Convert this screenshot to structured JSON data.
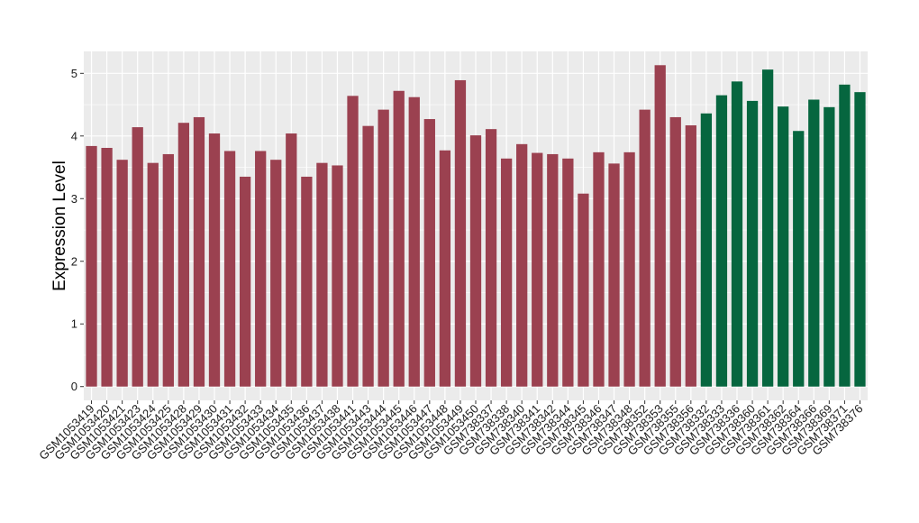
{
  "chart_data": {
    "type": "bar",
    "ylabel": "Expression Level",
    "xlabel": "",
    "ylim": [
      -0.22,
      5.35
    ],
    "yticks": [
      0,
      1,
      2,
      3,
      4,
      5
    ],
    "grid": true,
    "panel_background": "#ebebeb",
    "grid_color": "#ffffff",
    "group_colors": {
      "red": "#9b4150",
      "green": "#06663f"
    },
    "categories": [
      "GSM1053419",
      "GSM1053420",
      "GSM1053421",
      "GSM1053423",
      "GSM1053424",
      "GSM1053425",
      "GSM1053428",
      "GSM1053429",
      "GSM1053430",
      "GSM1053431",
      "GSM1053432",
      "GSM1053433",
      "GSM1053434",
      "GSM1053435",
      "GSM1053436",
      "GSM1053437",
      "GSM1053438",
      "GSM1053441",
      "GSM1053443",
      "GSM1053444",
      "GSM1053445",
      "GSM1053446",
      "GSM1053447",
      "GSM1053448",
      "GSM1053449",
      "GSM1053450",
      "GSM738337",
      "GSM738338",
      "GSM738340",
      "GSM738341",
      "GSM738342",
      "GSM738344",
      "GSM738345",
      "GSM738346",
      "GSM738347",
      "GSM738348",
      "GSM738352",
      "GSM738353",
      "GSM738355",
      "GSM738356",
      "GSM738332",
      "GSM738333",
      "GSM738336",
      "GSM738360",
      "GSM738361",
      "GSM738362",
      "GSM738364",
      "GSM738366",
      "GSM738369",
      "GSM738371",
      "GSM738376"
    ],
    "values": [
      3.84,
      3.81,
      3.62,
      4.14,
      3.57,
      3.71,
      4.21,
      4.3,
      4.04,
      3.76,
      3.35,
      3.76,
      3.62,
      4.04,
      3.35,
      3.57,
      3.53,
      4.64,
      4.16,
      4.42,
      4.72,
      4.62,
      4.27,
      3.77,
      4.89,
      4.01,
      4.11,
      3.64,
      3.87,
      3.73,
      3.71,
      3.64,
      3.08,
      3.74,
      3.56,
      3.74,
      4.42,
      5.13,
      4.3,
      4.17,
      4.36,
      4.65,
      4.87,
      4.56,
      5.06,
      4.47,
      4.08,
      4.58,
      4.46,
      4.82,
      4.7
    ],
    "groups": [
      "red",
      "red",
      "red",
      "red",
      "red",
      "red",
      "red",
      "red",
      "red",
      "red",
      "red",
      "red",
      "red",
      "red",
      "red",
      "red",
      "red",
      "red",
      "red",
      "red",
      "red",
      "red",
      "red",
      "red",
      "red",
      "red",
      "red",
      "red",
      "red",
      "red",
      "red",
      "red",
      "red",
      "red",
      "red",
      "red",
      "red",
      "red",
      "red",
      "red",
      "green",
      "green",
      "green",
      "green",
      "green",
      "green",
      "green",
      "green",
      "green",
      "green",
      "green"
    ]
  }
}
